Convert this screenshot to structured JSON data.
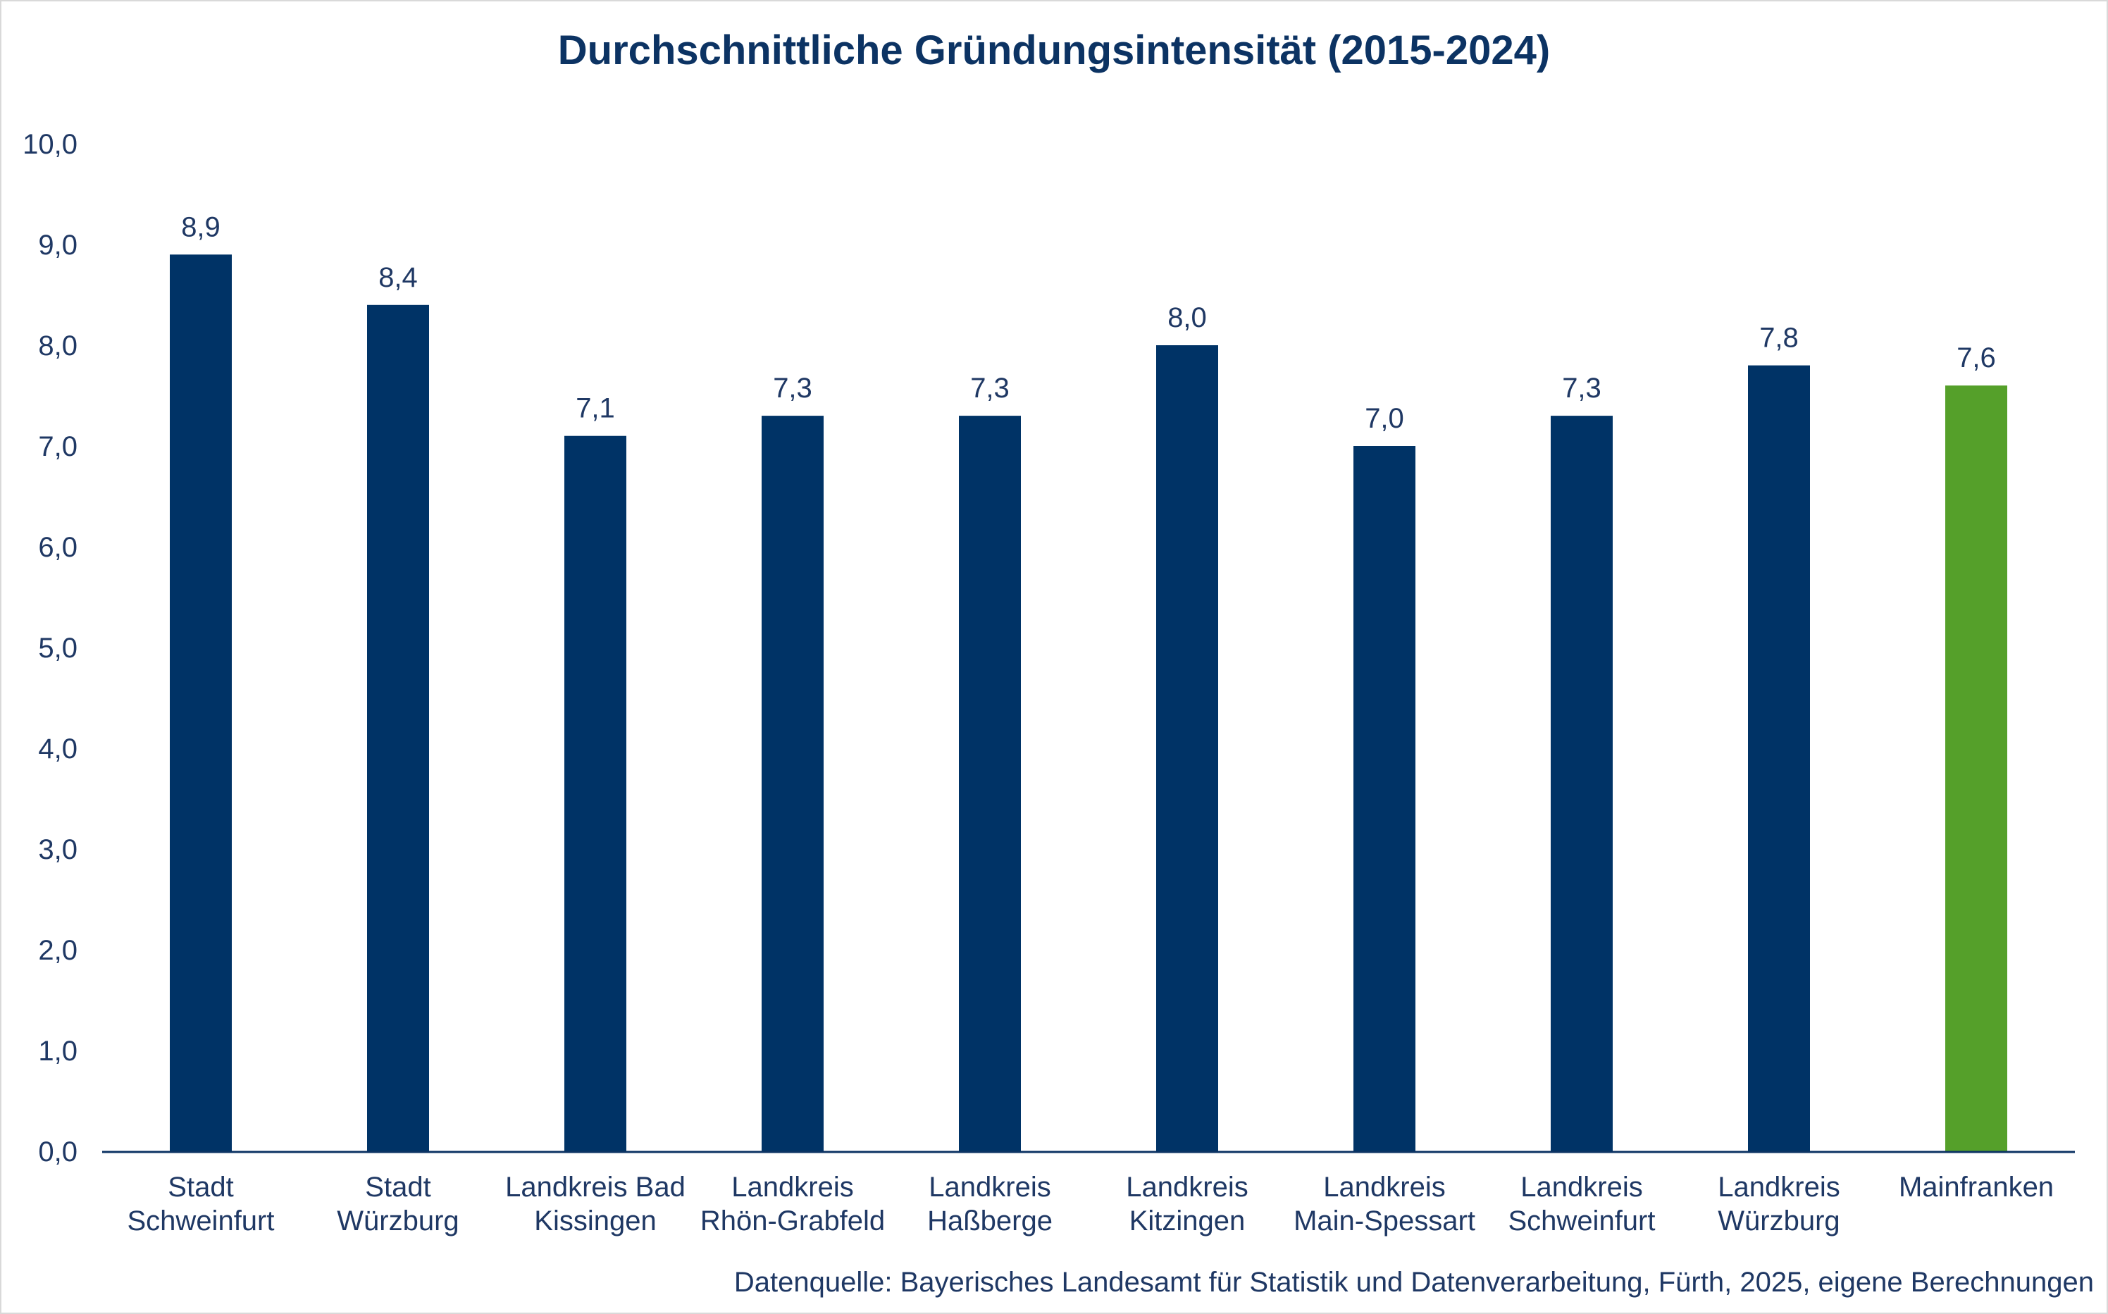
{
  "chart_data": {
    "type": "bar",
    "title": "Durchschnittliche Gründungsintensität (2015-2024)",
    "categories": [
      [
        "Stadt",
        "Schweinfurt"
      ],
      [
        "Stadt",
        "Würzburg"
      ],
      [
        "Landkreis Bad",
        "Kissingen"
      ],
      [
        "Landkreis",
        "Rhön-Grabfeld"
      ],
      [
        "Landkreis",
        "Haßberge"
      ],
      [
        "Landkreis",
        "Kitzingen"
      ],
      [
        "Landkreis",
        "Main-Spessart"
      ],
      [
        "Landkreis",
        "Schweinfurt"
      ],
      [
        "Landkreis",
        "Würzburg"
      ],
      [
        "Mainfranken"
      ]
    ],
    "values": [
      8.9,
      8.4,
      7.1,
      7.3,
      7.3,
      8.0,
      7.0,
      7.3,
      7.8,
      7.6
    ],
    "data_labels": [
      "8,9",
      "8,4",
      "7,1",
      "7,3",
      "7,3",
      "8,0",
      "7,0",
      "7,3",
      "7,8",
      "7,6"
    ],
    "bar_colors": [
      "#003366",
      "#003366",
      "#003366",
      "#003366",
      "#003366",
      "#003366",
      "#003366",
      "#003366",
      "#003366",
      "#55a02a"
    ],
    "ylim": [
      0,
      10
    ],
    "y_ticks": [
      "0,0",
      "1,0",
      "2,0",
      "3,0",
      "4,0",
      "5,0",
      "6,0",
      "7,0",
      "8,0",
      "9,0",
      "10,0"
    ],
    "xlabel": "",
    "ylabel": "",
    "grid": false,
    "legend": "none"
  },
  "source_note": "Datenquelle: Bayerisches Landesamt für Statistik und Datenverarbeitung, Fürth, 2025, eigene Berechnungen",
  "colors": {
    "title": "#0c3363",
    "text": "#1f3864",
    "axis": "#0c3363"
  }
}
